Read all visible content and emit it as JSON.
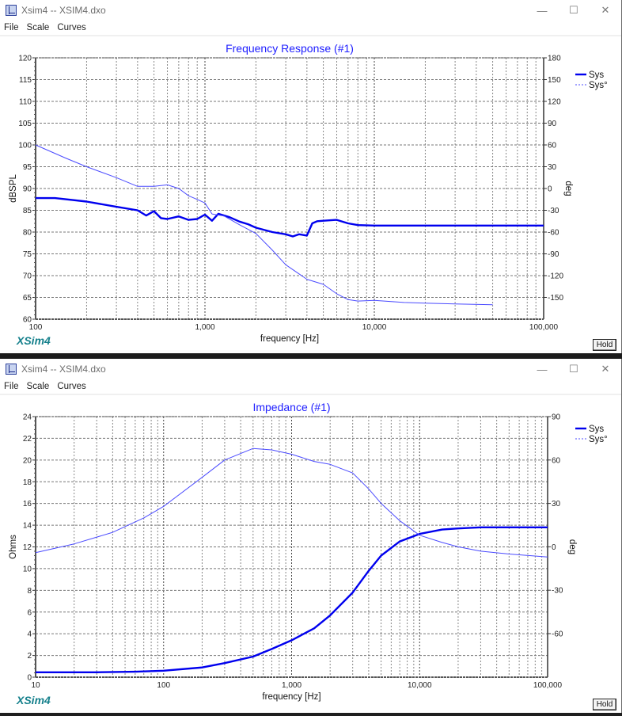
{
  "windows": [
    {
      "title": "Xsim4 -- XSIM4.dxo",
      "menu": [
        "File",
        "Scale",
        "Curves"
      ],
      "controls": {
        "minimize": "—",
        "maximize": "☐",
        "close": "✕"
      },
      "brand": "XSim4",
      "hold_label": "Hold"
    },
    {
      "title": "Xsim4 -- XSIM4.dxo",
      "menu": [
        "File",
        "Scale",
        "Curves"
      ],
      "controls": {
        "minimize": "—",
        "maximize": "☐",
        "close": "✕"
      },
      "brand": "XSim4",
      "hold_label": "Hold"
    }
  ],
  "colors": {
    "curve": "#0000ee",
    "phase": "#4b4bff",
    "title": "#2020ff",
    "grid": "#7a7a7a",
    "brand": "#15808c"
  },
  "chart_data": [
    {
      "type": "line",
      "title": "Frequency Response (#1)",
      "xlabel": "frequency [Hz]",
      "ylabel": "dBSPL",
      "y2label": "deg",
      "xscale": "log",
      "xlim": [
        100,
        100000
      ],
      "ylim": [
        60,
        120
      ],
      "y2lim": [
        -150,
        180
      ],
      "xticks": [
        "100",
        "1,000",
        "10,000",
        "100,000"
      ],
      "yticks": [
        "60",
        "65",
        "70",
        "75",
        "80",
        "85",
        "90",
        "95",
        "100",
        "105",
        "110",
        "115",
        "120"
      ],
      "y2ticks": [
        "-150",
        "-120",
        "-90",
        "-60",
        "-30",
        "0",
        "30",
        "60",
        "90",
        "120",
        "150",
        "180"
      ],
      "legend": [
        "Sys",
        "Sys°"
      ],
      "legend_position": "right-top",
      "grid": true,
      "series": [
        {
          "name": "Sys",
          "axis": "left",
          "style": "solid-thick",
          "x": [
            100,
            130,
            200,
            300,
            400,
            450,
            500,
            550,
            600,
            700,
            800,
            900,
            1000,
            1100,
            1200,
            1400,
            1600,
            1800,
            2000,
            2500,
            3000,
            3300,
            3600,
            4000,
            4300,
            4600,
            5000,
            6000,
            7000,
            8000,
            10000,
            20000,
            50000,
            100000
          ],
          "y": [
            87.8,
            87.8,
            87.0,
            85.8,
            85.0,
            83.8,
            84.8,
            83.2,
            83.0,
            83.6,
            82.8,
            83.0,
            84.0,
            82.6,
            84.2,
            83.4,
            82.4,
            81.8,
            81.0,
            80.0,
            79.5,
            79.0,
            79.5,
            79.2,
            82.0,
            82.5,
            82.6,
            82.8,
            82.0,
            81.6,
            81.5,
            81.5,
            81.5,
            81.5
          ]
        },
        {
          "name": "Sys°",
          "axis": "right",
          "style": "thin",
          "x": [
            100,
            150,
            200,
            300,
            400,
            500,
            600,
            700,
            800,
            900,
            1000,
            1100,
            1300,
            1600,
            2000,
            2500,
            3000,
            4000,
            5000,
            6000,
            7000,
            8000,
            10000,
            15000,
            20000,
            30000,
            50000
          ],
          "y": [
            60,
            42,
            30,
            15,
            3,
            3,
            5,
            0,
            -10,
            -15,
            -20,
            -35,
            -38,
            -50,
            -62,
            -85,
            -105,
            -125,
            -132,
            -145,
            -153,
            -155,
            -154,
            -157,
            -158,
            -159,
            -160
          ]
        }
      ]
    },
    {
      "type": "line",
      "title": "Impedance (#1)",
      "xlabel": "frequency [Hz]",
      "ylabel": "Ohms",
      "y2label": "deg",
      "xscale": "log",
      "xlim": [
        10,
        100000
      ],
      "ylim": [
        0,
        24
      ],
      "y2lim": [
        -90,
        90
      ],
      "xticks": [
        "10",
        "100",
        "1,000",
        "10,000",
        "100,000"
      ],
      "yticks": [
        "0",
        "2",
        "4",
        "6",
        "8",
        "10",
        "12",
        "14",
        "16",
        "18",
        "20",
        "22",
        "24"
      ],
      "y2ticks": [
        "-60",
        "-30",
        "0",
        "30",
        "60",
        "90"
      ],
      "legend": [
        "Sys",
        "Sys°"
      ],
      "legend_position": "right-top",
      "grid": true,
      "series": [
        {
          "name": "Sys",
          "axis": "left",
          "style": "solid-thick",
          "x": [
            10,
            30,
            60,
            100,
            200,
            300,
            500,
            700,
            1000,
            1500,
            2000,
            3000,
            4000,
            5000,
            7000,
            10000,
            15000,
            20000,
            30000,
            50000,
            100000
          ],
          "y": [
            0.45,
            0.45,
            0.5,
            0.6,
            0.9,
            1.3,
            1.9,
            2.6,
            3.4,
            4.5,
            5.7,
            7.8,
            9.8,
            11.2,
            12.5,
            13.2,
            13.6,
            13.7,
            13.8,
            13.8,
            13.8
          ]
        },
        {
          "name": "Sys°",
          "axis": "right",
          "style": "thin",
          "x": [
            10,
            20,
            40,
            70,
            100,
            200,
            300,
            500,
            700,
            1000,
            1500,
            2000,
            3000,
            4000,
            5000,
            7000,
            10000,
            15000,
            20000,
            30000,
            50000,
            100000
          ],
          "y": [
            -4,
            2,
            10,
            20,
            28,
            48,
            60,
            68,
            67,
            64,
            59,
            57,
            51,
            40,
            30,
            18,
            8,
            3,
            0,
            -3,
            -5,
            -7
          ]
        }
      ]
    }
  ]
}
